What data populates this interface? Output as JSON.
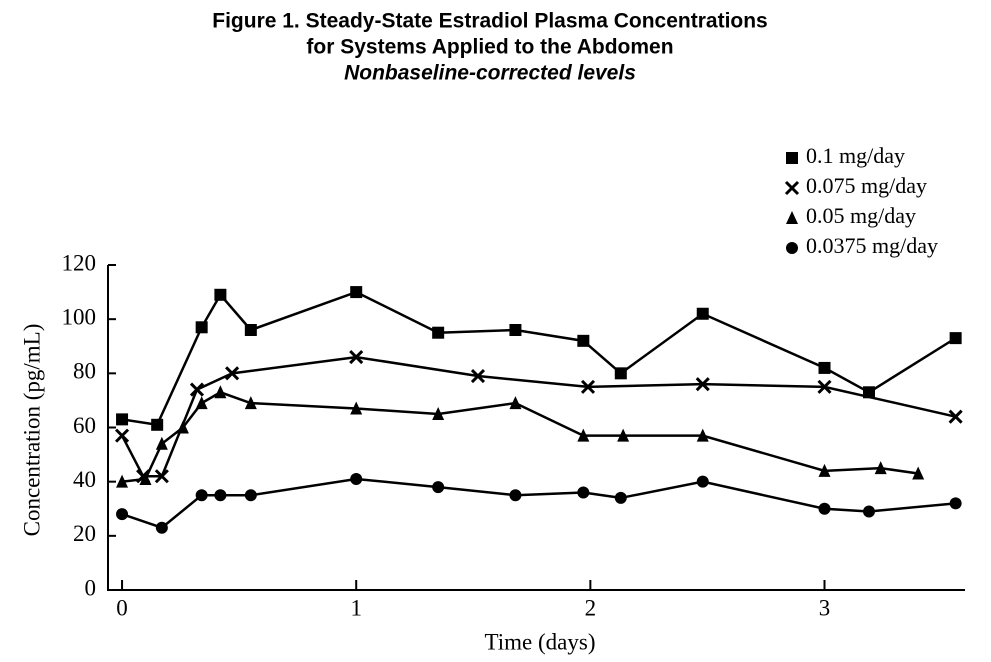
{
  "chart_data": {
    "type": "line",
    "title": [
      "Figure 1. Steady-State Estradiol Plasma Concentrations",
      "for Systems Applied to the Abdomen"
    ],
    "subtitle": "Nonbaseline-corrected levels",
    "x_label": "Time (days)",
    "y_label": "Concentration (pg/mL)",
    "xlim": [
      -0.06,
      3.6
    ],
    "xticks": [
      0,
      1,
      2,
      3
    ],
    "ylim": [
      0,
      120
    ],
    "yticks": [
      0,
      20,
      40,
      60,
      80,
      100,
      120
    ],
    "legend": "top-right",
    "series": [
      {
        "name": "0.1 mg/day",
        "color": "#000000",
        "marker": "square",
        "x": [
          0,
          0.15,
          0.34,
          0.42,
          0.55,
          1,
          1.35,
          1.68,
          1.97,
          2.13,
          2.48,
          3,
          3.19,
          3.56
        ],
        "values": [
          63,
          61,
          97,
          109,
          96,
          110,
          95,
          96,
          92,
          80,
          102,
          82,
          73,
          93
        ]
      },
      {
        "name": "0.075 mg/day",
        "color": "#000000",
        "marker": "x",
        "x": [
          0,
          0.09,
          0.17,
          0.32,
          0.47,
          1,
          1.52,
          1.99,
          2.48,
          3,
          3.56
        ],
        "values": [
          57,
          42,
          42,
          74,
          80,
          86,
          79,
          75,
          76,
          75,
          64
        ]
      },
      {
        "name": "0.05  mg/day",
        "color": "#000000",
        "marker": "triangle",
        "x": [
          0,
          0.1,
          0.17,
          0.26,
          0.34,
          0.42,
          0.55,
          1,
          1.35,
          1.68,
          1.97,
          2.14,
          2.48,
          3,
          3.24,
          3.4
        ],
        "values": [
          40,
          41,
          54,
          60,
          69,
          73,
          69,
          67,
          65,
          69,
          57,
          57,
          57,
          44,
          45,
          43
        ]
      },
      {
        "name": "0.0375 mg/day",
        "color": "#000000",
        "marker": "circle",
        "x": [
          0,
          0.17,
          0.34,
          0.42,
          0.55,
          1,
          1.35,
          1.68,
          1.97,
          2.13,
          2.48,
          3,
          3.19,
          3.56
        ],
        "values": [
          28,
          23,
          35,
          35,
          35,
          41,
          38,
          35,
          36,
          34,
          40,
          30,
          29,
          32
        ]
      }
    ]
  }
}
